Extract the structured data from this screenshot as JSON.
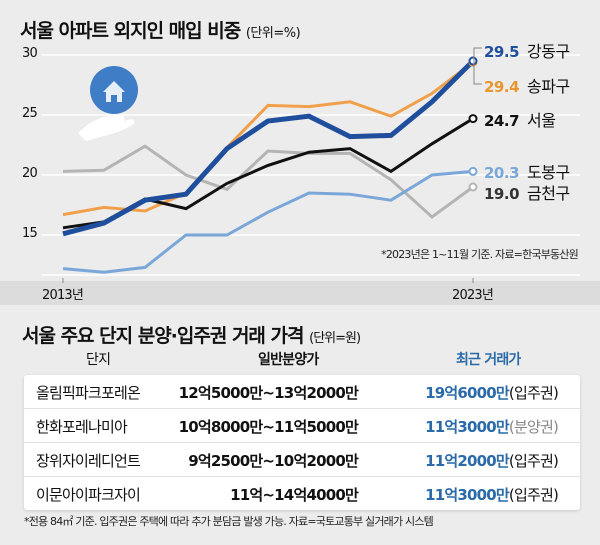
{
  "chart_data": {
    "type": "line",
    "title": "서울 아파트 외지인 매입 비중",
    "unit": "(단위=%)",
    "x": [
      2013,
      2014,
      2015,
      2016,
      2017,
      2018,
      2019,
      2020,
      2021,
      2022,
      2023
    ],
    "x_tick_labels": [
      "2013년",
      "2023년"
    ],
    "y_ticks": [
      "30",
      "25",
      "20",
      "15"
    ],
    "ylim": [
      11,
      30
    ],
    "grid": true,
    "series": [
      {
        "name": "금천구",
        "color": "#b4b4b4",
        "end_label": "19.0",
        "label_color": "#333333",
        "values": [
          20.3,
          20.4,
          22.4,
          20.0,
          18.8,
          22.0,
          21.8,
          21.8,
          19.6,
          16.5,
          19.0
        ]
      },
      {
        "name": "도봉구",
        "color": "#7aa6d8",
        "end_label": "20.3",
        "label_color": "#7aa6d8",
        "values": [
          12.2,
          11.9,
          12.3,
          15.0,
          15.0,
          16.9,
          18.5,
          18.4,
          17.9,
          20.0,
          20.3
        ]
      },
      {
        "name": "송파구",
        "color": "#f0a04b",
        "end_label": "29.4",
        "label_color": "#e8962e",
        "values": [
          16.7,
          17.3,
          17.0,
          18.5,
          22.3,
          25.8,
          25.7,
          26.1,
          24.9,
          26.8,
          29.4
        ]
      },
      {
        "name": "서울",
        "color": "#111111",
        "end_label": "24.7",
        "label_color": "#111111",
        "values": [
          15.6,
          16.1,
          18.0,
          17.2,
          19.3,
          20.8,
          21.9,
          22.2,
          20.3,
          22.6,
          24.7
        ]
      },
      {
        "name": "강동구",
        "color": "#1f4e9c",
        "end_label": "29.5",
        "label_color": "#1f4e9c",
        "values": [
          15.1,
          16.0,
          17.9,
          18.4,
          22.2,
          24.5,
          24.9,
          23.2,
          23.3,
          26.1,
          29.5
        ]
      }
    ],
    "annotation": "*2023년은 1~11월 기준. 자료=한국부동산원"
  },
  "table": {
    "title": "서울 주요 단지 분양·입주권 거래 가격",
    "unit": "(단위=원)",
    "headers": [
      "단지",
      "일반분양가",
      "최근 거래가"
    ],
    "rows": [
      {
        "complex": "올림픽파크포레온",
        "sale_price": "12억5000만~13억2000만",
        "recent_price": "19억6000만",
        "type": "(입주권)"
      },
      {
        "complex": "한화포레나미아",
        "sale_price": "10억8000만~11억5000만",
        "recent_price": "11억3000만",
        "type": "(분양권)"
      },
      {
        "complex": "장위자이레디언트",
        "sale_price": "9억2500만~10억2000만",
        "recent_price": "11억2000만",
        "type": "(입주권)"
      },
      {
        "complex": "이문아이파크자이",
        "sale_price": "11억~14억4000만",
        "recent_price": "11억3000만",
        "type": "(입주권)"
      }
    ],
    "note": "*전용 84㎡ 기준. 입주권은 주택에 따라 추가 분담금 발생 가능. 자료=국토교통부 실거래가 시스템"
  },
  "icon": "house-in-hand-icon"
}
